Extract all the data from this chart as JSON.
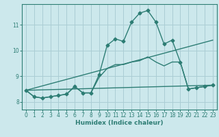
{
  "xlabel": "Humidex (Indice chaleur)",
  "xlim": [
    -0.5,
    23.5
  ],
  "ylim": [
    7.7,
    11.8
  ],
  "yticks": [
    8,
    9,
    10,
    11
  ],
  "xticks": [
    0,
    1,
    2,
    3,
    4,
    5,
    6,
    7,
    8,
    9,
    10,
    11,
    12,
    13,
    14,
    15,
    16,
    17,
    18,
    19,
    20,
    21,
    22,
    23
  ],
  "bg_color": "#cce8ec",
  "grid_color": "#aacdd4",
  "line_color": "#2d7d74",
  "lines": [
    {
      "x": [
        0,
        1,
        2,
        3,
        4,
        5,
        6,
        7,
        8,
        9,
        10,
        11,
        12,
        13,
        14,
        15,
        16,
        17,
        18,
        19,
        20,
        21,
        22,
        23
      ],
      "y": [
        8.45,
        8.2,
        8.15,
        8.2,
        8.25,
        8.3,
        8.6,
        8.35,
        8.35,
        9.05,
        10.2,
        10.45,
        10.35,
        11.1,
        11.45,
        11.55,
        11.1,
        10.25,
        10.4,
        9.55,
        8.5,
        8.55,
        8.6,
        8.65
      ],
      "has_marker": true
    },
    {
      "x": [
        0,
        1,
        2,
        3,
        4,
        5,
        6,
        7,
        8,
        9,
        10,
        11,
        12,
        13,
        14,
        15,
        16,
        17,
        18,
        19,
        20,
        21,
        22,
        23
      ],
      "y": [
        8.45,
        8.2,
        8.15,
        8.2,
        8.25,
        8.3,
        8.6,
        8.35,
        8.35,
        8.95,
        9.3,
        9.45,
        9.45,
        9.55,
        9.6,
        9.75,
        9.55,
        9.4,
        9.55,
        9.55,
        8.5,
        8.55,
        8.6,
        8.65
      ],
      "has_marker": false
    },
    {
      "x": [
        0,
        23
      ],
      "y": [
        8.45,
        10.4
      ],
      "has_marker": false
    },
    {
      "x": [
        0,
        23
      ],
      "y": [
        8.45,
        8.65
      ],
      "has_marker": false
    }
  ]
}
